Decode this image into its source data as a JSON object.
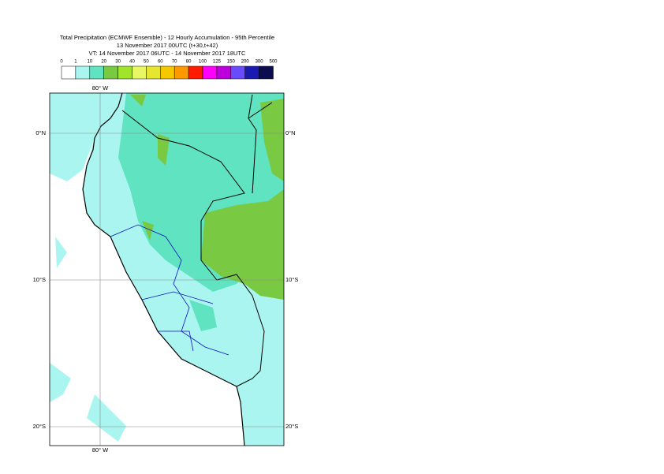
{
  "title": [
    "Total Precipitation (ECMWF Ensemble) - 12 Hourly Accumulation - 95th Percentile",
    "13 November 2017 00UTC (t+30,t+42)",
    "VT: 14 November 2017 06UTC - 14 November 2017 18UTC"
  ],
  "legend": {
    "labels": [
      0,
      1,
      10,
      20,
      30,
      40,
      50,
      60,
      70,
      80,
      100,
      125,
      150,
      200,
      300,
      500
    ],
    "colors": [
      "#ffffff",
      "#aaf5f0",
      "#5fe3c0",
      "#7ac943",
      "#a0e52a",
      "#e8f862",
      "#e6e630",
      "#f5c800",
      "#ff9900",
      "#ff1a00",
      "#ff00ff",
      "#bb00dd",
      "#6a4cff",
      "#1a1ab0",
      "#0b0b50"
    ]
  },
  "axes": {
    "top": [
      "80° W"
    ],
    "bottom": [
      "80° W"
    ],
    "left": [
      "0°N",
      "10°S",
      "20°S"
    ],
    "right": [
      "0°N",
      "10°S",
      "20°S"
    ]
  }
}
